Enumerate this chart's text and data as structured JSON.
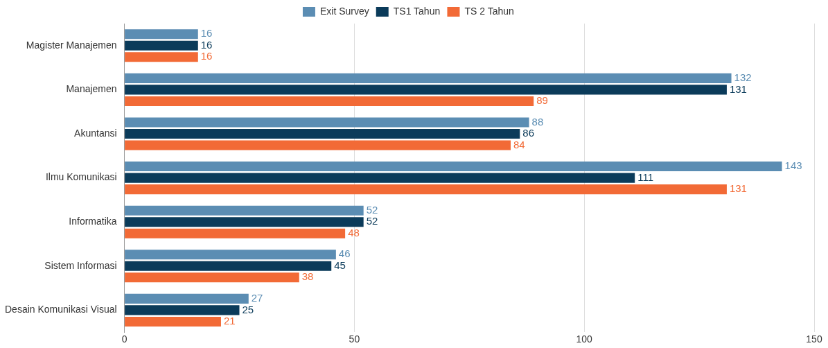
{
  "chart_data": {
    "type": "bar",
    "orientation": "horizontal",
    "categories": [
      "Magister Manajemen",
      "Manajemen",
      "Akuntansi",
      "Ilmu Komunikasi",
      "Informatika",
      "Sistem Informasi",
      "Desain Komunikasi Visual"
    ],
    "series": [
      {
        "name": "Exit Survey",
        "color": "#5b8db3",
        "values": [
          16,
          132,
          88,
          143,
          52,
          46,
          27
        ]
      },
      {
        "name": "TS1 Tahun",
        "color": "#0b3b5a",
        "values": [
          16,
          131,
          86,
          111,
          52,
          45,
          25
        ]
      },
      {
        "name": "TS 2 Tahun",
        "color": "#f26a36",
        "values": [
          16,
          89,
          84,
          131,
          48,
          38,
          21
        ]
      }
    ],
    "xlim": [
      0,
      150
    ],
    "xticks": [
      0,
      50,
      100,
      150
    ],
    "grid": "x",
    "legend": "top",
    "data_labels": true
  }
}
